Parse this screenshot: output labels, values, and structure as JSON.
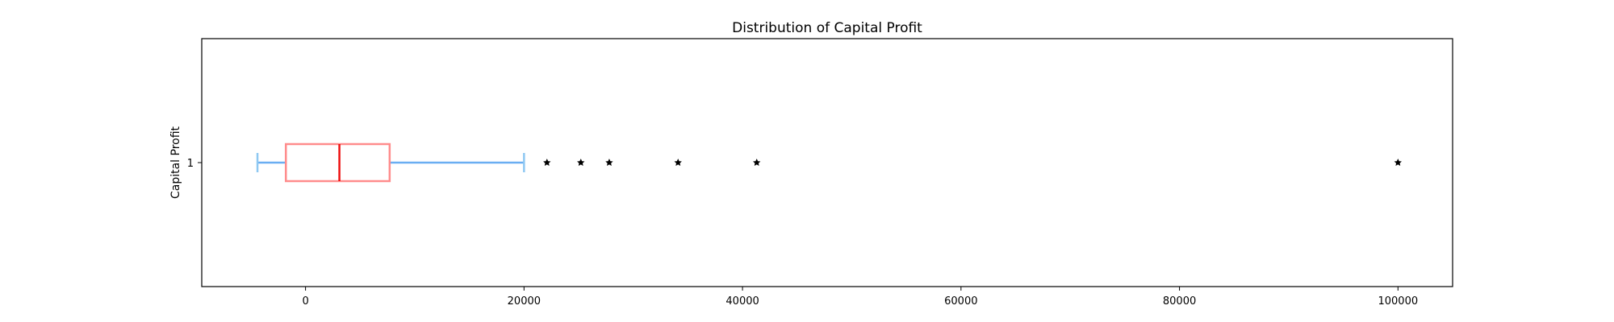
{
  "chart_data": {
    "type": "boxplot",
    "orientation": "horizontal",
    "title": "Distribution of Capital Profit",
    "xlabel": "",
    "ylabel": "Capital Profit",
    "xlim": [
      -9500,
      105000
    ],
    "x_ticks": [
      0,
      20000,
      40000,
      60000,
      80000,
      100000
    ],
    "y_ticks": [
      "1"
    ],
    "grid": false,
    "box": {
      "category": "1",
      "whisker_low": -4400,
      "q1": -1800,
      "median": 3100,
      "q3": 7700,
      "whisker_high": 20000,
      "outliers": [
        22100,
        25200,
        27800,
        34100,
        41300,
        99999
      ]
    },
    "colors": {
      "box": "#ff8c8c",
      "median": "#ee1111",
      "whisker": "#6aaef2",
      "cap": "#8ec8f2",
      "outlier": "#000000",
      "axes": "#000000"
    }
  }
}
